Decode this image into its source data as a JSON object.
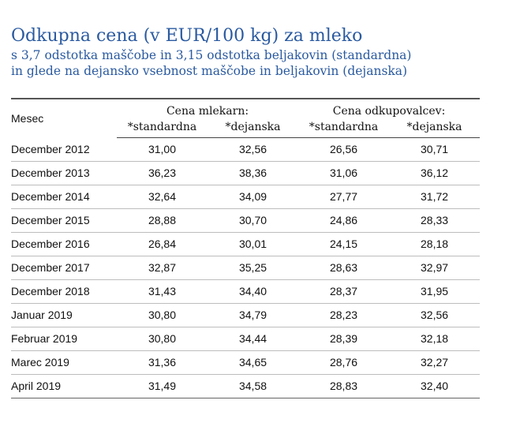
{
  "title": "Odkupna cena (v EUR/100 kg) za mleko",
  "subtitle_line1": "s 3,7 odstotka maščobe in 3,15 odstotka beljakovin (standardna)",
  "subtitle_line2": "in glede na dejansko vsebnost maščobe in beljakovin (dejanska)",
  "table": {
    "month_header": "Mesec",
    "group1": "Cena mlekarn:",
    "group2": "Cena odkupovalcev:",
    "sub_std1": "*standardna",
    "sub_act1": "*dejanska",
    "sub_std2": "*standardna",
    "sub_act2": "*dejanska",
    "rows": [
      {
        "month": "December 2012",
        "v1": "31,00",
        "v2": "32,56",
        "v3": "26,56",
        "v4": "30,71"
      },
      {
        "month": "December 2013",
        "v1": "36,23",
        "v2": "38,36",
        "v3": "31,06",
        "v4": "36,12"
      },
      {
        "month": "December 2014",
        "v1": "32,64",
        "v2": "34,09",
        "v3": "27,77",
        "v4": "31,72"
      },
      {
        "month": "December 2015",
        "v1": "28,88",
        "v2": "30,70",
        "v3": "24,86",
        "v4": "28,33"
      },
      {
        "month": "December 2016",
        "v1": "26,84",
        "v2": "30,01",
        "v3": "24,15",
        "v4": "28,18"
      },
      {
        "month": "December 2017",
        "v1": "32,87",
        "v2": "35,25",
        "v3": "28,63",
        "v4": "32,97"
      },
      {
        "month": "December 2018",
        "v1": "31,43",
        "v2": "34,40",
        "v3": "28,37",
        "v4": "31,95"
      },
      {
        "month": "Januar 2019",
        "v1": "30,80",
        "v2": "34,79",
        "v3": "28,23",
        "v4": "32,56"
      },
      {
        "month": "Februar 2019",
        "v1": "30,80",
        "v2": "34,44",
        "v3": "28,39",
        "v4": "32,18"
      },
      {
        "month": "Marec 2019",
        "v1": "31,36",
        "v2": "34,65",
        "v3": "28,76",
        "v4": "32,27"
      },
      {
        "month": "April 2019",
        "v1": "31,49",
        "v2": "34,58",
        "v3": "28,83",
        "v4": "32,40"
      }
    ]
  }
}
